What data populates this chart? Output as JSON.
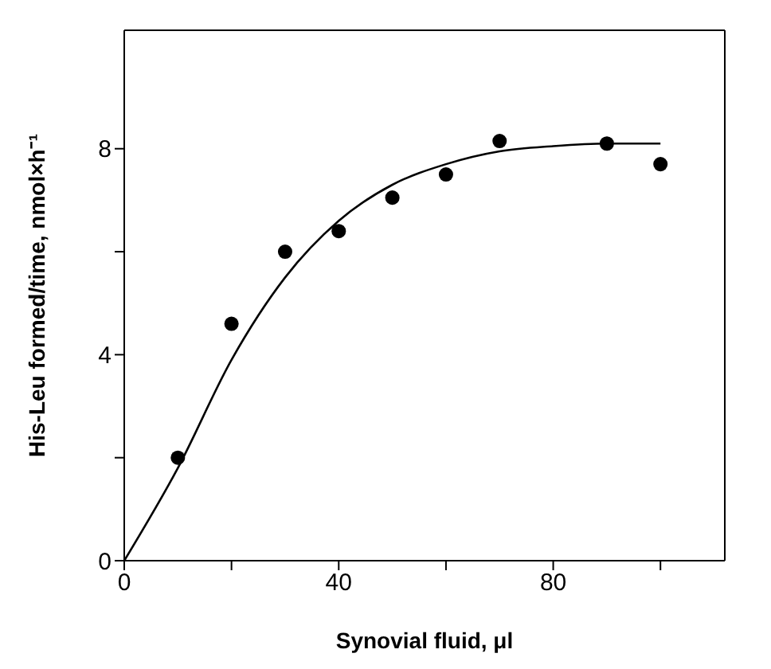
{
  "chart_data": {
    "type": "scatter",
    "xlabel": "Synovial fluid, μl",
    "ylabel": "His-Leu formed/time, nmol×h⁻¹",
    "xlim": [
      0,
      112
    ],
    "ylim": [
      0,
      10.3
    ],
    "xticks": [
      0,
      {
        "value": 20,
        "label": null
      },
      40,
      {
        "value": 60,
        "label": null
      },
      80,
      {
        "value": 100,
        "label": null
      }
    ],
    "yticks": [
      0,
      {
        "value": 2,
        "label": null
      },
      4,
      {
        "value": 6,
        "label": null
      },
      8
    ],
    "grid": false,
    "legend": false,
    "series": [
      {
        "color": "#000000",
        "marker": "circle",
        "x": [
          10,
          20,
          30,
          40,
          50,
          60,
          70,
          90,
          100
        ],
        "values": [
          2,
          4.6,
          6,
          6.4,
          7.05,
          7.5,
          8.15,
          8.1,
          7.7
        ]
      },
      {
        "type": "line",
        "color": "#000000",
        "marker": "none",
        "line_style": "solid",
        "x": [
          0,
          10,
          20,
          30,
          40,
          50,
          60,
          70,
          80,
          90,
          100
        ],
        "values": [
          0,
          1.8,
          3.9,
          5.5,
          6.6,
          7.3,
          7.7,
          7.95,
          8.05,
          8.1,
          8.1
        ]
      }
    ]
  }
}
